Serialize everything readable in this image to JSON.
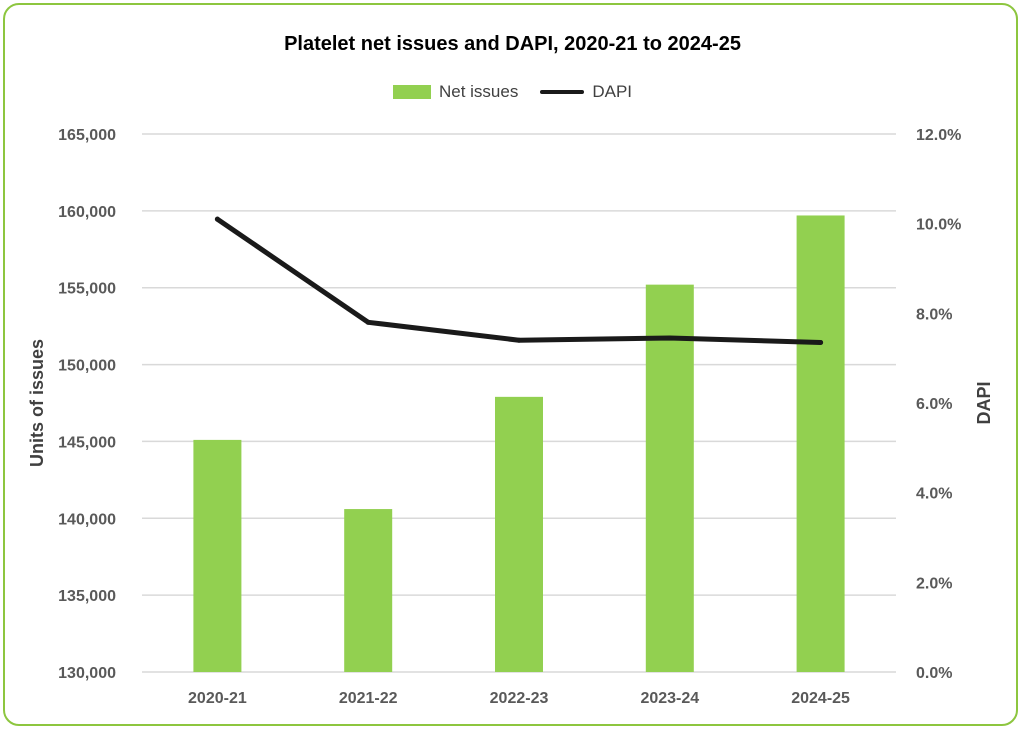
{
  "chart_data": {
    "type": "bar",
    "title": "Platelet net issues and DAPI, 2020-21 to 2024-25",
    "categories": [
      "2020-21",
      "2021-22",
      "2022-23",
      "2023-24",
      "2024-25"
    ],
    "series": [
      {
        "name": "Net issues",
        "kind": "bar",
        "axis": "left",
        "color": "#92d050",
        "values": [
          145100,
          140600,
          147900,
          155200,
          159700
        ]
      },
      {
        "name": "DAPI",
        "kind": "line",
        "axis": "right",
        "color": "#1a1a1a",
        "values": [
          10.1,
          7.8,
          7.4,
          7.45,
          7.35
        ]
      }
    ],
    "ylabel": "Units of issues",
    "ylabel_right": "DAPI",
    "ylim": [
      130000,
      165000
    ],
    "ylim_right": [
      0,
      12
    ],
    "y_ticks": [
      "130,000",
      "135,000",
      "140,000",
      "145,000",
      "150,000",
      "155,000",
      "160,000",
      "165,000"
    ],
    "y_ticks_right": [
      "0.0%",
      "2.0%",
      "4.0%",
      "6.0%",
      "8.0%",
      "10.0%",
      "12.0%"
    ],
    "grid": true,
    "legend_position": "top-center"
  },
  "colors": {
    "border": "#8dc63f",
    "bar": "#92d050",
    "line": "#1a1a1a",
    "grid": "#d9d9d9"
  }
}
